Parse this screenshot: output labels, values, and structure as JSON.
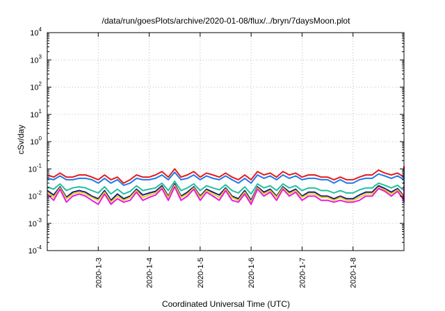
{
  "chart_data": {
    "type": "line",
    "title": "/data/run/goesPlots/archive/2020-01-08/flux/../bryn/7daysMoon.plot",
    "xlabel": "Coordinated Universal Time (UTC)",
    "ylabel": "cSv/day",
    "yscale": "log",
    "ylim": [
      0.0001,
      10000
    ],
    "y_ticks": [
      {
        "base": "10",
        "exp": "-4",
        "value": 0.0001
      },
      {
        "base": "10",
        "exp": "-3",
        "value": 0.001
      },
      {
        "base": "10",
        "exp": "-2",
        "value": 0.01
      },
      {
        "base": "10",
        "exp": "-1",
        "value": 0.1
      },
      {
        "base": "10",
        "exp": "0",
        "value": 1
      },
      {
        "base": "10",
        "exp": "1",
        "value": 10
      },
      {
        "base": "10",
        "exp": "2",
        "value": 100
      },
      {
        "base": "10",
        "exp": "3",
        "value": 1000
      },
      {
        "base": "10",
        "exp": "4",
        "value": 10000
      }
    ],
    "xlim": [
      "2020-01-02",
      "2020-01-09"
    ],
    "x_ticks": [
      "2020-1-3",
      "2020-1-4",
      "2020-1-5",
      "2020-1-6",
      "2020-1-7",
      "2020-1-8"
    ],
    "grid": true,
    "x_step_hours": 3,
    "series": [
      {
        "color": "#e41a1c",
        "values": [
          0.06,
          0.05,
          0.07,
          0.05,
          0.05,
          0.06,
          0.06,
          0.05,
          0.04,
          0.06,
          0.04,
          0.05,
          0.03,
          0.04,
          0.06,
          0.05,
          0.05,
          0.06,
          0.08,
          0.05,
          0.1,
          0.05,
          0.06,
          0.08,
          0.05,
          0.07,
          0.06,
          0.05,
          0.07,
          0.05,
          0.04,
          0.06,
          0.04,
          0.08,
          0.06,
          0.07,
          0.05,
          0.08,
          0.06,
          0.07,
          0.05,
          0.06,
          0.06,
          0.05,
          0.05,
          0.04,
          0.05,
          0.04,
          0.04,
          0.05,
          0.06,
          0.06,
          0.09,
          0.07,
          0.06,
          0.07,
          0.05,
          0.06,
          0.05,
          0.04,
          0.06,
          0.07,
          0.05,
          0.05,
          0.08,
          0.06,
          0.05,
          0.06,
          0.04,
          0.05,
          0.07,
          0.06,
          0.09,
          0.05,
          0.06,
          0.06,
          0.05,
          0.06,
          0.05,
          0.06,
          0.05,
          0.06,
          0.06,
          0.08,
          0.05,
          0.06,
          0.07,
          0.08,
          0.06,
          0.05,
          0.06,
          0.08,
          0.07,
          0.1,
          0.06,
          0.05,
          0.09,
          0.06,
          0.05,
          0.07,
          0.12,
          0.05,
          0.05,
          0.06,
          0.05,
          0.06,
          0.05,
          0.04,
          0.05,
          0.04,
          0.05,
          0.06,
          0.06,
          0.07,
          0.06,
          0.06,
          0.07,
          0.06,
          0.06,
          0.06,
          0.05,
          0.06,
          0.06,
          0.04,
          0.05,
          0.06,
          0.05,
          0.07,
          0.08,
          0.1
        ]
      },
      {
        "color": "#1f78e8",
        "values": [
          0.045,
          0.04,
          0.055,
          0.04,
          0.04,
          0.045,
          0.045,
          0.04,
          0.03,
          0.045,
          0.03,
          0.04,
          0.025,
          0.03,
          0.045,
          0.04,
          0.04,
          0.045,
          0.06,
          0.04,
          0.075,
          0.04,
          0.045,
          0.06,
          0.04,
          0.055,
          0.045,
          0.04,
          0.055,
          0.04,
          0.03,
          0.045,
          0.03,
          0.06,
          0.045,
          0.055,
          0.04,
          0.06,
          0.045,
          0.055,
          0.04,
          0.045,
          0.045,
          0.04,
          0.04,
          0.03,
          0.04,
          0.03,
          0.03,
          0.04,
          0.045,
          0.045,
          0.065,
          0.055,
          0.045,
          0.055,
          0.04,
          0.045,
          0.04,
          0.03,
          0.045,
          0.055,
          0.04,
          0.04,
          0.06,
          0.045,
          0.04,
          0.045,
          0.03,
          0.04,
          0.055,
          0.045,
          0.065,
          0.04,
          0.045,
          0.045,
          0.04,
          0.045,
          0.04,
          0.045,
          0.04,
          0.045,
          0.045,
          0.06,
          0.04,
          0.045,
          0.055,
          0.06,
          0.045,
          0.04,
          0.045,
          0.06,
          0.055,
          0.075,
          0.045,
          0.04,
          0.065,
          0.045,
          0.04,
          0.055,
          0.085,
          0.04,
          0.04,
          0.045,
          0.04,
          0.045,
          0.04,
          0.03,
          0.04,
          0.03,
          0.04,
          0.045,
          0.045,
          0.055,
          0.045,
          0.045,
          0.055,
          0.045,
          0.045,
          0.045,
          0.04,
          0.045,
          0.045,
          0.03,
          0.04,
          0.045,
          0.04,
          0.055,
          0.06,
          0.075
        ]
      },
      {
        "color": "#1fbf9f",
        "values": [
          0.022,
          0.018,
          0.028,
          0.016,
          0.02,
          0.022,
          0.02,
          0.016,
          0.013,
          0.022,
          0.012,
          0.018,
          0.012,
          0.015,
          0.024,
          0.016,
          0.018,
          0.02,
          0.03,
          0.016,
          0.035,
          0.016,
          0.02,
          0.028,
          0.016,
          0.024,
          0.02,
          0.017,
          0.026,
          0.016,
          0.013,
          0.022,
          0.012,
          0.028,
          0.02,
          0.024,
          0.016,
          0.028,
          0.02,
          0.024,
          0.016,
          0.02,
          0.02,
          0.016,
          0.016,
          0.013,
          0.016,
          0.013,
          0.013,
          0.017,
          0.02,
          0.02,
          0.03,
          0.025,
          0.02,
          0.025,
          0.016,
          0.02,
          0.016,
          0.013,
          0.02,
          0.025,
          0.016,
          0.016,
          0.028,
          0.02,
          0.016,
          0.02,
          0.013,
          0.016,
          0.025,
          0.02,
          0.03,
          0.016,
          0.02,
          0.02,
          0.016,
          0.02,
          0.016,
          0.02,
          0.016,
          0.02,
          0.02,
          0.028,
          0.016,
          0.02,
          0.025,
          0.028,
          0.02,
          0.016,
          0.02,
          0.028,
          0.025,
          0.035,
          0.02,
          0.016,
          0.03,
          0.02,
          0.016,
          0.025,
          0.04,
          0.016,
          0.016,
          0.02,
          0.016,
          0.02,
          0.016,
          0.013,
          0.016,
          0.013,
          0.016,
          0.02,
          0.02,
          0.025,
          0.02,
          0.02,
          0.025,
          0.02,
          0.02,
          0.02,
          0.016,
          0.02,
          0.02,
          0.013,
          0.016,
          0.02,
          0.016,
          0.025,
          0.028,
          0.032
        ]
      },
      {
        "color": "#1a1a80",
        "values": [
          0.016,
          0.011,
          0.022,
          0.009,
          0.014,
          0.016,
          0.014,
          0.01,
          0.008,
          0.016,
          0.007,
          0.012,
          0.008,
          0.01,
          0.018,
          0.011,
          0.013,
          0.015,
          0.024,
          0.01,
          0.028,
          0.01,
          0.014,
          0.022,
          0.01,
          0.018,
          0.014,
          0.011,
          0.02,
          0.01,
          0.008,
          0.016,
          0.007,
          0.022,
          0.014,
          0.018,
          0.01,
          0.022,
          0.014,
          0.018,
          0.01,
          0.014,
          0.014,
          0.01,
          0.01,
          0.008,
          0.01,
          0.008,
          0.008,
          0.011,
          0.014,
          0.014,
          0.024,
          0.019,
          0.014,
          0.019,
          0.01,
          0.014,
          0.01,
          0.008,
          0.014,
          0.019,
          0.01,
          0.01,
          0.022,
          0.014,
          0.01,
          0.014,
          0.008,
          0.01,
          0.019,
          0.014,
          0.024,
          0.01,
          0.014,
          0.014,
          0.01,
          0.014,
          0.01,
          0.014,
          0.01,
          0.014,
          0.014,
          0.022,
          0.01,
          0.014,
          0.019,
          0.022,
          0.014,
          0.01,
          0.014,
          0.022,
          0.019,
          0.028,
          0.014,
          0.01,
          0.024,
          0.014,
          0.01,
          0.019,
          0.03,
          0.01,
          0.01,
          0.014,
          0.01,
          0.014,
          0.01,
          0.008,
          0.01,
          0.008,
          0.01,
          0.014,
          0.014,
          0.019,
          0.014,
          0.014,
          0.019,
          0.014,
          0.014,
          0.014,
          0.01,
          0.014,
          0.014,
          0.008,
          0.01,
          0.014,
          0.01,
          0.019,
          0.022,
          0.025
        ]
      },
      {
        "color": "#e8d21a",
        "values": [
          0.014,
          0.009,
          0.02,
          0.008,
          0.012,
          0.014,
          0.012,
          0.009,
          0.007,
          0.014,
          0.006,
          0.01,
          0.007,
          0.009,
          0.016,
          0.009,
          0.011,
          0.013,
          0.021,
          0.009,
          0.025,
          0.009,
          0.012,
          0.02,
          0.009,
          0.016,
          0.012,
          0.009,
          0.018,
          0.009,
          0.007,
          0.014,
          0.006,
          0.02,
          0.012,
          0.016,
          0.009,
          0.02,
          0.012,
          0.016,
          0.009,
          0.012,
          0.012,
          0.009,
          0.009,
          0.007,
          0.009,
          0.007,
          0.007,
          0.009,
          0.012,
          0.012,
          0.021,
          0.017,
          0.012,
          0.017,
          0.009,
          0.012,
          0.009,
          0.007,
          0.012,
          0.017,
          0.009,
          0.009,
          0.02,
          0.012,
          0.009,
          0.012,
          0.007,
          0.009,
          0.017,
          0.012,
          0.021,
          0.009,
          0.012,
          0.012,
          0.009,
          0.012,
          0.009,
          0.012,
          0.009,
          0.012,
          0.012,
          0.02,
          0.009,
          0.012,
          0.017,
          0.02,
          0.012,
          0.009,
          0.012,
          0.02,
          0.017,
          0.025,
          0.012,
          0.009,
          0.021,
          0.012,
          0.009,
          0.017,
          0.027,
          0.009,
          0.009,
          0.012,
          0.009,
          0.012,
          0.009,
          0.007,
          0.009,
          0.007,
          0.009,
          0.012,
          0.012,
          0.017,
          0.012,
          0.012,
          0.017,
          0.012,
          0.012,
          0.012,
          0.009,
          0.012,
          0.012,
          0.007,
          0.009,
          0.012,
          0.009,
          0.017,
          0.02,
          0.022
        ]
      },
      {
        "color": "#e81ae0",
        "values": [
          0.012,
          0.007,
          0.018,
          0.006,
          0.01,
          0.012,
          0.01,
          0.007,
          0.005,
          0.012,
          0.005,
          0.008,
          0.006,
          0.007,
          0.014,
          0.007,
          0.009,
          0.011,
          0.019,
          0.007,
          0.022,
          0.007,
          0.01,
          0.018,
          0.007,
          0.014,
          0.01,
          0.007,
          0.016,
          0.007,
          0.006,
          0.012,
          0.005,
          0.018,
          0.01,
          0.014,
          0.007,
          0.018,
          0.01,
          0.014,
          0.007,
          0.01,
          0.01,
          0.007,
          0.007,
          0.006,
          0.007,
          0.006,
          0.006,
          0.007,
          0.01,
          0.01,
          0.019,
          0.015,
          0.01,
          0.015,
          0.007,
          0.01,
          0.007,
          0.006,
          0.01,
          0.015,
          0.007,
          0.007,
          0.018,
          0.01,
          0.007,
          0.01,
          0.006,
          0.007,
          0.015,
          0.01,
          0.019,
          0.007,
          0.01,
          0.01,
          0.007,
          0.01,
          0.007,
          0.01,
          0.007,
          0.01,
          0.01,
          0.018,
          0.007,
          0.01,
          0.015,
          0.018,
          0.01,
          0.007,
          0.01,
          0.018,
          0.015,
          0.022,
          0.01,
          0.007,
          0.019,
          0.01,
          0.007,
          0.015,
          0.024,
          0.007,
          0.007,
          0.01,
          0.007,
          0.01,
          0.007,
          0.006,
          0.007,
          0.006,
          0.007,
          0.01,
          0.01,
          0.015,
          0.01,
          0.01,
          0.015,
          0.01,
          0.01,
          0.01,
          0.007,
          0.01,
          0.01,
          0.006,
          0.007,
          0.01,
          0.007,
          0.015,
          0.018,
          0.02
        ]
      }
    ]
  }
}
